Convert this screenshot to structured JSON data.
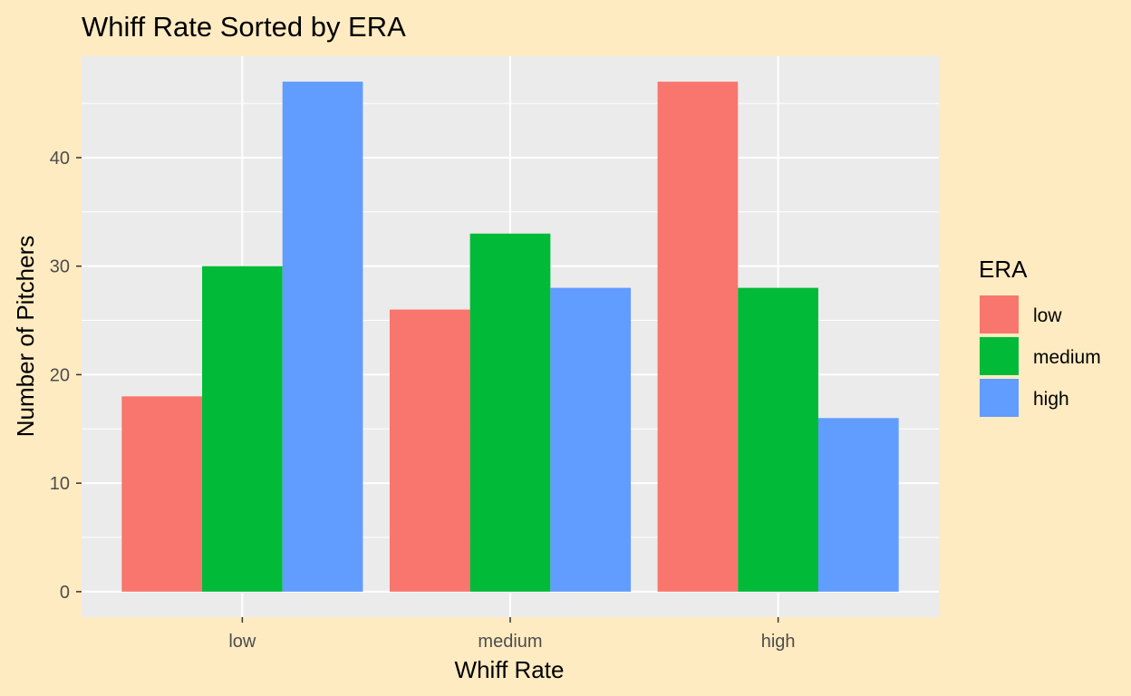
{
  "chart_data": {
    "type": "bar",
    "title": "Whiff Rate Sorted by ERA",
    "xlabel": "Whiff Rate",
    "ylabel": "Number of Pitchers",
    "categories": [
      "low",
      "medium",
      "high"
    ],
    "ylim": [
      -2.35,
      49.35
    ],
    "yticks": [
      0,
      10,
      20,
      30,
      40
    ],
    "grid": true,
    "legend": {
      "title": "ERA",
      "position": "right"
    },
    "series": [
      {
        "name": "low",
        "color": "#F8766D",
        "values": [
          18,
          26,
          47
        ]
      },
      {
        "name": "medium",
        "color": "#00BA38",
        "values": [
          30,
          33,
          28
        ]
      },
      {
        "name": "high",
        "color": "#619CFF",
        "values": [
          47,
          28,
          16
        ]
      }
    ]
  },
  "colors": {
    "page_background": "#ffebc1",
    "panel_background": "#ebebeb",
    "grid": "#ffffff",
    "axis_text": "#4d4d4d",
    "title_text": "#000000"
  }
}
